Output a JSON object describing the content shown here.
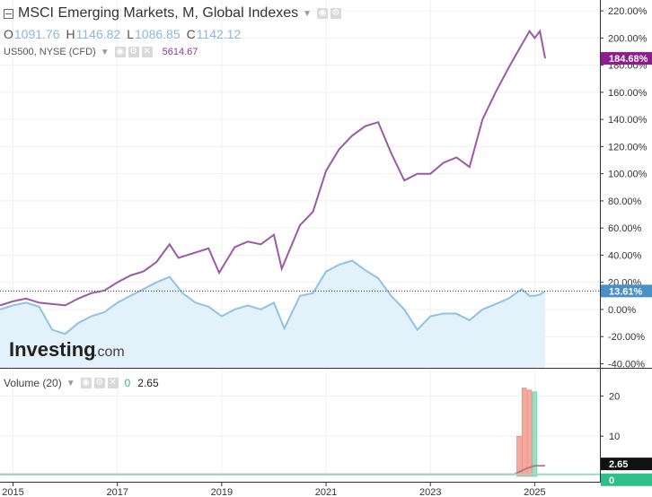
{
  "legend": {
    "title": "MSCI Emerging Markets, M, Global Indexes",
    "ohlc": [
      {
        "key": "O",
        "value": "1091.76"
      },
      {
        "key": "H",
        "value": "1146.82"
      },
      {
        "key": "L",
        "value": "1086.85"
      },
      {
        "key": "C",
        "value": "1142.12"
      }
    ],
    "compare": {
      "label": "US500, NYSE (CFD)",
      "value": "5614.67"
    },
    "volume": {
      "label": "Volume (20)",
      "zero": "0",
      "value": "2.65"
    }
  },
  "branding": {
    "logo_main": "Investing",
    "logo_suffix": ".com"
  },
  "colors": {
    "compare_line": "#9b59a8",
    "main_line": "#8ec3e6",
    "main_fill": "#e3f1fb",
    "volume_red": "#f4a8a0",
    "volume_green": "#98e0c8",
    "volume_ma": "#b07a7a",
    "compare_badge": "#8e1c8e",
    "main_badge": "#4a90c8"
  },
  "chart_data": [
    {
      "type": "line",
      "x_ticks": [
        "2015",
        "2017",
        "2019",
        "2021",
        "2023",
        "2025"
      ],
      "y_ticks": [
        "220.00%",
        "200.00%",
        "180.00%",
        "160.00%",
        "140.00%",
        "120.00%",
        "100.00%",
        "80.00%",
        "60.00%",
        "40.00%",
        "20.00%",
        "0.00%",
        "-20.00%",
        "-40.00%"
      ],
      "ylim": [
        -43,
        228
      ],
      "xlim": [
        2014.75,
        2026.25
      ],
      "last_labels": {
        "compare": "184.68%",
        "main": "13.61%"
      },
      "series": [
        {
          "name": "US500, NYSE (CFD)",
          "x": [
            2014.75,
            2015.0,
            2015.25,
            2015.5,
            2015.75,
            2016.0,
            2016.25,
            2016.5,
            2016.75,
            2017.0,
            2017.25,
            2017.5,
            2017.75,
            2018.0,
            2018.17,
            2018.5,
            2018.75,
            2018.95,
            2019.25,
            2019.5,
            2019.75,
            2020.0,
            2020.15,
            2020.5,
            2020.75,
            2021.0,
            2021.25,
            2021.5,
            2021.75,
            2022.0,
            2022.25,
            2022.5,
            2022.75,
            2023.0,
            2023.25,
            2023.5,
            2023.75,
            2024.0,
            2024.25,
            2024.5,
            2024.75,
            2024.9,
            2025.0,
            2025.1,
            2025.2
          ],
          "values": [
            3,
            6,
            8,
            5,
            4,
            3,
            8,
            12,
            14,
            20,
            25,
            28,
            35,
            48,
            38,
            42,
            45,
            27,
            46,
            50,
            48,
            55,
            30,
            62,
            72,
            102,
            118,
            128,
            135,
            138,
            115,
            95,
            100,
            100,
            108,
            112,
            105,
            140,
            160,
            178,
            195,
            205,
            200,
            205,
            185
          ]
        },
        {
          "name": "MSCI Emerging Markets",
          "x": [
            2014.75,
            2015.0,
            2015.25,
            2015.5,
            2015.75,
            2016.0,
            2016.25,
            2016.5,
            2016.75,
            2017.0,
            2017.25,
            2017.5,
            2017.75,
            2018.0,
            2018.25,
            2018.5,
            2018.75,
            2019.0,
            2019.25,
            2019.5,
            2019.75,
            2020.0,
            2020.2,
            2020.5,
            2020.75,
            2021.0,
            2021.25,
            2021.5,
            2021.75,
            2022.0,
            2022.25,
            2022.5,
            2022.75,
            2023.0,
            2023.25,
            2023.5,
            2023.75,
            2024.0,
            2024.25,
            2024.5,
            2024.75,
            2024.9,
            2025.0,
            2025.1,
            2025.2
          ],
          "values": [
            0,
            3,
            5,
            2,
            -15,
            -18,
            -10,
            -5,
            -2,
            5,
            10,
            15,
            20,
            24,
            12,
            5,
            2,
            -5,
            0,
            3,
            0,
            5,
            -14,
            10,
            12,
            28,
            33,
            36,
            29,
            23,
            10,
            0,
            -15,
            -5,
            -3,
            -3,
            -8,
            0,
            4,
            8,
            15,
            10,
            10,
            11,
            13.61
          ]
        }
      ]
    },
    {
      "type": "bar",
      "title": "Volume (20)",
      "y_ticks": [
        "20",
        "10"
      ],
      "ylim": [
        0,
        25
      ],
      "last_labels": {
        "volume": "2.65",
        "zero": "0"
      },
      "x": [
        2024.7,
        2024.8,
        2024.9,
        2025.0
      ],
      "values": [
        10.0,
        22.0,
        21.5,
        21.0
      ],
      "moving_average": {
        "x": [
          2014.75,
          2024.6,
          2024.85,
          2025.0,
          2025.2
        ],
        "values": [
          0.5,
          0.5,
          2.0,
          2.65,
          2.65
        ]
      }
    }
  ]
}
